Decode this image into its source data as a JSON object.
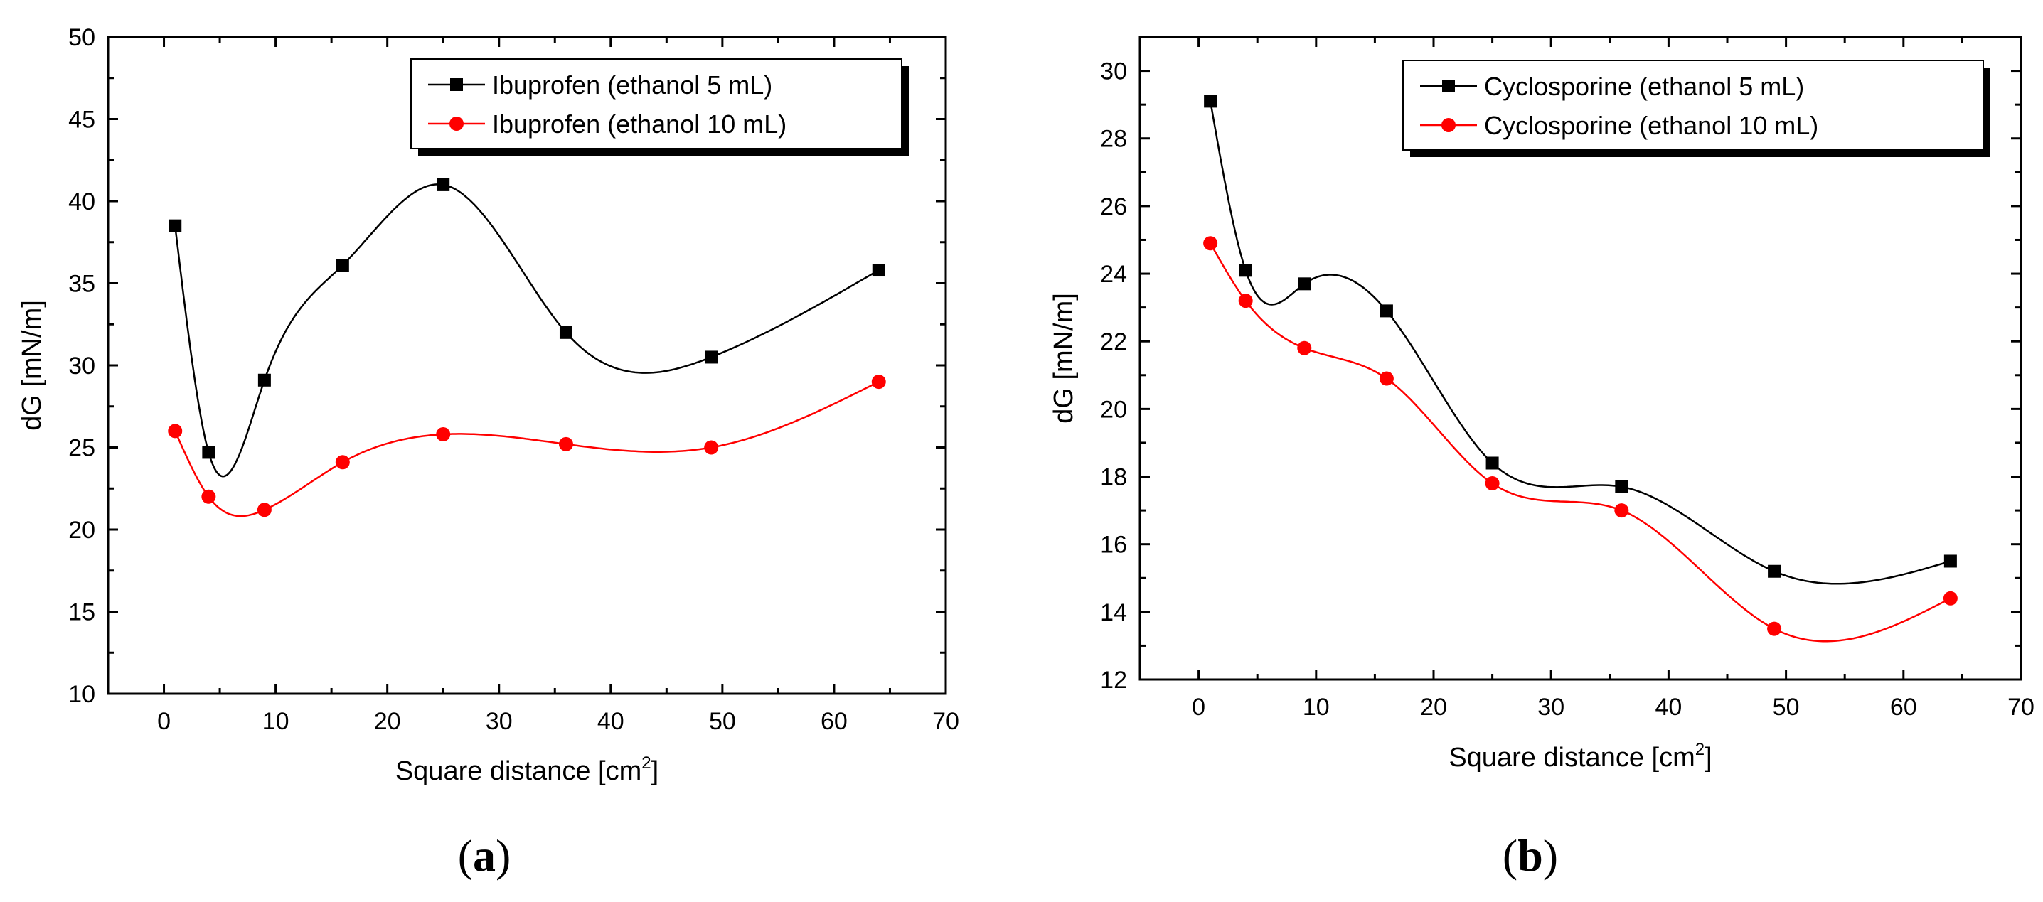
{
  "chart_data": [
    {
      "type": "scatter",
      "panel_label": "a",
      "xlabel": "Square distance [cm",
      "xlabel_sup": "2",
      "xlabel_close": "]",
      "ylabel": "dG [mN/m]",
      "xlim": [
        -5,
        70
      ],
      "ylim": [
        10,
        50
      ],
      "xticks": [
        0,
        10,
        20,
        30,
        40,
        50,
        60,
        70
      ],
      "yticks": [
        10,
        15,
        20,
        25,
        30,
        35,
        40,
        45,
        50
      ],
      "legend_position": "top-right",
      "series": [
        {
          "name": "Ibuprofen (ethanol 5 mL)",
          "color": "#000000",
          "marker": "square",
          "x": [
            1,
            4,
            9,
            16,
            25,
            36,
            49,
            64
          ],
          "y": [
            38.5,
            24.7,
            29.1,
            36.1,
            41.0,
            32.0,
            30.5,
            35.8
          ]
        },
        {
          "name": "Ibuprofen (ethanol 10 mL)",
          "color": "#ff0000",
          "marker": "circle",
          "x": [
            1,
            4,
            9,
            16,
            25,
            36,
            49,
            64
          ],
          "y": [
            26.0,
            22.0,
            21.2,
            24.1,
            25.8,
            25.2,
            25.0,
            29.0
          ]
        }
      ]
    },
    {
      "type": "scatter",
      "panel_label": "b",
      "xlabel": "Square distance [cm",
      "xlabel_sup": "2",
      "xlabel_close": "]",
      "ylabel": "dG [mN/m]",
      "xlim": [
        -5,
        70
      ],
      "ylim": [
        12,
        31
      ],
      "xticks": [
        0,
        10,
        20,
        30,
        40,
        50,
        60,
        70
      ],
      "yticks": [
        12,
        14,
        16,
        18,
        20,
        22,
        24,
        26,
        28,
        30
      ],
      "legend_position": "top-right",
      "series": [
        {
          "name": "Cyclosporine (ethanol 5 mL)",
          "color": "#000000",
          "marker": "square",
          "x": [
            1,
            4,
            9,
            16,
            25,
            36,
            49,
            64
          ],
          "y": [
            29.1,
            24.1,
            23.7,
            22.9,
            18.4,
            17.7,
            15.2,
            15.5
          ]
        },
        {
          "name": "Cyclosporine (ethanol 10 mL)",
          "color": "#ff0000",
          "marker": "circle",
          "x": [
            1,
            4,
            9,
            16,
            25,
            36,
            49,
            64
          ],
          "y": [
            24.9,
            23.2,
            21.8,
            20.9,
            17.8,
            17.0,
            13.5,
            14.4
          ]
        }
      ]
    }
  ]
}
